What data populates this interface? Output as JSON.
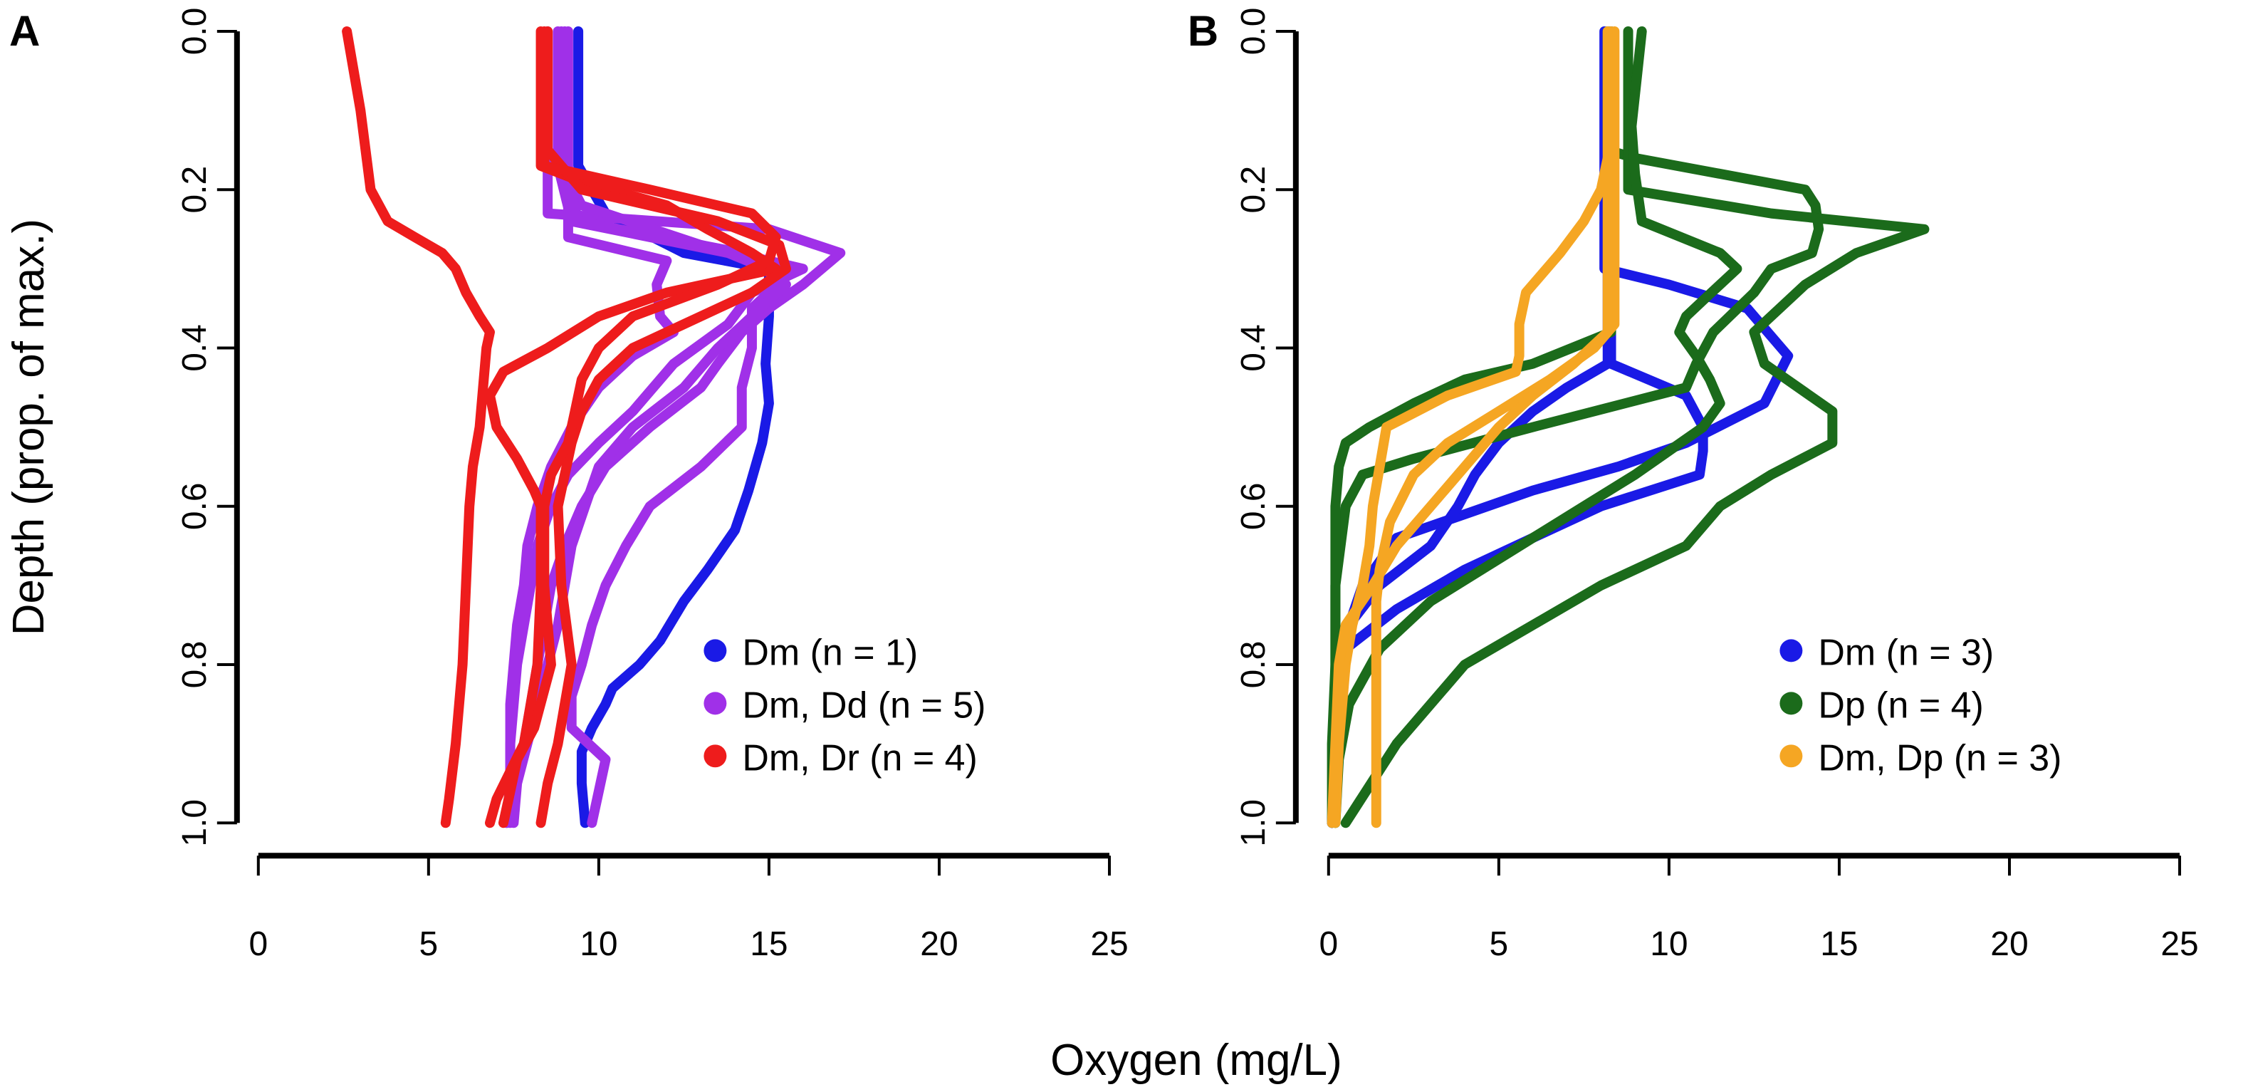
{
  "colors": {
    "Dm": "#1a1ae6",
    "Dm_Dd": "#a030e8",
    "Dm_Dr": "#ee1c1c",
    "Dp": "#1b6b1b",
    "Dm_Dp": "#f5a623"
  },
  "xlabel": "Oxygen (mg/L)",
  "ylabel": "Depth (prop. of max.)",
  "chart_data": [
    {
      "type": "line",
      "panel_label": "A",
      "xlabel": "Oxygen (mg/L)",
      "ylabel": "Depth (prop. of max.)",
      "xlim": [
        0,
        25
      ],
      "ylim": [
        0,
        1
      ],
      "x_ticks": [
        "0",
        "5",
        "10",
        "15",
        "20",
        "25"
      ],
      "y_ticks": [
        "0.0",
        "0.2",
        "0.4",
        "0.6",
        "0.8",
        "1.0"
      ],
      "legend_position": "bottom-right",
      "legend": [
        {
          "label": "Dm (n = 1)",
          "color_key": "Dm"
        },
        {
          "label": "Dm, Dd (n = 5)",
          "color_key": "Dm_Dd"
        },
        {
          "label": "Dm, Dr (n = 4)",
          "color_key": "Dm_Dr"
        }
      ],
      "series": [
        {
          "name": "Dm 1",
          "color_key": "Dm",
          "depth": [
            0,
            0.17,
            0.23,
            0.28,
            0.3,
            0.36,
            0.42,
            0.47,
            0.52,
            0.58,
            0.63,
            0.68,
            0.72,
            0.77,
            0.8,
            0.83,
            0.85,
            0.88,
            0.91,
            0.95,
            1.0
          ],
          "oxygen": [
            9.4,
            9.4,
            10.2,
            12.5,
            15,
            15,
            14.9,
            15,
            14.8,
            14.4,
            14,
            13.2,
            12.5,
            11.8,
            11.2,
            10.4,
            10.2,
            9.8,
            9.5,
            9.5,
            9.6
          ]
        },
        {
          "name": "Dm, Dd 1",
          "color_key": "Dm_Dd",
          "depth": [
            0,
            0.17,
            0.23,
            0.25,
            0.28,
            0.32,
            0.35,
            0.38,
            0.42,
            0.45,
            0.5,
            0.55,
            0.6,
            0.65,
            0.7,
            0.75,
            0.8,
            0.85,
            0.9,
            0.95,
            1.0
          ],
          "oxygen": [
            8.5,
            8.5,
            8.5,
            15,
            17.1,
            16,
            15,
            14.2,
            13.5,
            13,
            11.5,
            10.2,
            9.5,
            9,
            8.6,
            8.4,
            8.2,
            8,
            7.8,
            7.5,
            7.4
          ]
        },
        {
          "name": "Dm, Dd 2",
          "color_key": "Dm_Dd",
          "depth": [
            0,
            0.17,
            0.26,
            0.29,
            0.32,
            0.36,
            0.38,
            0.41,
            0.45,
            0.5,
            0.55,
            0.6,
            0.65,
            0.7,
            0.75,
            0.8,
            0.85,
            0.9,
            0.95,
            1.0
          ],
          "oxygen": [
            9.1,
            9.1,
            9.1,
            12,
            11.7,
            11.8,
            12.2,
            11,
            10,
            9.2,
            8.6,
            8.2,
            7.9,
            7.8,
            7.6,
            7.5,
            7.4,
            7.4,
            7.4,
            7.3
          ]
        },
        {
          "name": "Dm, Dd 3",
          "color_key": "Dm_Dd",
          "depth": [
            0,
            0.17,
            0.22,
            0.27,
            0.3,
            0.33,
            0.37,
            0.42,
            0.48,
            0.52,
            0.56,
            0.6,
            0.65,
            0.7,
            0.75,
            0.8,
            0.85,
            0.9,
            0.95,
            1.0
          ],
          "oxygen": [
            8.9,
            8.9,
            9.5,
            13,
            16,
            14.5,
            13.8,
            12.2,
            11,
            10,
            9.1,
            8.6,
            8.2,
            8,
            7.8,
            7.6,
            7.5,
            7.4,
            7.4,
            7.3
          ]
        },
        {
          "name": "Dm, Dd 4",
          "color_key": "Dm_Dd",
          "depth": [
            0,
            0.17,
            0.24,
            0.28,
            0.31,
            0.35,
            0.4,
            0.45,
            0.5,
            0.55,
            0.6,
            0.65,
            0.7,
            0.75,
            0.8,
            0.84,
            0.88,
            0.92,
            0.96,
            1.0
          ],
          "oxygen": [
            8.8,
            8.8,
            9.2,
            13.8,
            15.5,
            14.5,
            14.5,
            14.2,
            14.2,
            13,
            11.5,
            10.8,
            10.2,
            9.8,
            9.5,
            9.2,
            9.2,
            10.2,
            10.0,
            9.8
          ]
        },
        {
          "name": "Dm, Dd 5",
          "color_key": "Dm_Dd",
          "depth": [
            0,
            0.17,
            0.24,
            0.28,
            0.32,
            0.36,
            0.4,
            0.45,
            0.5,
            0.55,
            0.6,
            0.65,
            0.7,
            0.75,
            0.8,
            0.85,
            0.9,
            0.95,
            1.0
          ],
          "oxygen": [
            9.0,
            9.0,
            9.4,
            14.2,
            15.5,
            14.5,
            13.5,
            12.5,
            11,
            10,
            9.6,
            9.2,
            9,
            8.8,
            8.5,
            8.2,
            7.9,
            7.6,
            7.5
          ]
        },
        {
          "name": "Dm, Dr 1",
          "color_key": "Dm_Dr",
          "depth": [
            0,
            0.1,
            0.2,
            0.24,
            0.26,
            0.28,
            0.3,
            0.33,
            0.36,
            0.38,
            0.4,
            0.45,
            0.5,
            0.55,
            0.6,
            0.7,
            0.8,
            0.9,
            0.97,
            1.0
          ],
          "oxygen": [
            2.6,
            3.0,
            3.3,
            3.8,
            4.6,
            5.4,
            5.8,
            6.1,
            6.5,
            6.8,
            6.7,
            6.6,
            6.5,
            6.3,
            6.2,
            6.1,
            6.0,
            5.8,
            5.6,
            5.5
          ]
        },
        {
          "name": "Dm, Dr 2",
          "color_key": "Dm_Dr",
          "depth": [
            0,
            0.17,
            0.19,
            0.22,
            0.25,
            0.28,
            0.3,
            0.33,
            0.36,
            0.4,
            0.43,
            0.46,
            0.5,
            0.54,
            0.58,
            0.6,
            0.7,
            0.8,
            0.9,
            0.97,
            1.0
          ],
          "oxygen": [
            8.3,
            8.3,
            9.5,
            12,
            13.2,
            14.5,
            15.2,
            12,
            10,
            8.5,
            7.2,
            6.8,
            7,
            7.6,
            8.1,
            8.3,
            8.3,
            8.2,
            7.8,
            7.0,
            6.8
          ]
        },
        {
          "name": "Dm, Dr 3",
          "color_key": "Dm_Dr",
          "depth": [
            0,
            0.15,
            0.2,
            0.24,
            0.27,
            0.3,
            0.33,
            0.37,
            0.4,
            0.44,
            0.48,
            0.52,
            0.56,
            0.6,
            0.7,
            0.8,
            0.9,
            0.95,
            1.0
          ],
          "oxygen": [
            8.5,
            8.5,
            9.5,
            13.5,
            15.3,
            15.5,
            14.5,
            12.5,
            11,
            10,
            9.5,
            9.2,
            9,
            8.8,
            8.9,
            9.2,
            8.8,
            8.5,
            8.3
          ]
        },
        {
          "name": "Dm, Dr 4",
          "color_key": "Dm_Dr",
          "depth": [
            0,
            0.17,
            0.2,
            0.23,
            0.26,
            0.29,
            0.32,
            0.36,
            0.4,
            0.44,
            0.48,
            0.52,
            0.56,
            0.6,
            0.7,
            0.8,
            0.88,
            0.92,
            0.96,
            1.0
          ],
          "oxygen": [
            8.4,
            8.4,
            11.5,
            14.5,
            15.2,
            15,
            13.5,
            11,
            10,
            9.5,
            9.3,
            9.1,
            8.6,
            8.4,
            8.4,
            8.6,
            8.1,
            7.6,
            7.4,
            7.2
          ]
        }
      ]
    },
    {
      "type": "line",
      "panel_label": "B",
      "xlabel": "Oxygen (mg/L)",
      "ylabel": "Depth (prop. of max.)",
      "xlim": [
        0,
        25
      ],
      "ylim": [
        0,
        1
      ],
      "x_ticks": [
        "0",
        "5",
        "10",
        "15",
        "20",
        "25"
      ],
      "y_ticks": [
        "0.0",
        "0.2",
        "0.4",
        "0.6",
        "0.8",
        "1.0"
      ],
      "legend_position": "bottom-right",
      "legend": [
        {
          "label": "Dm (n = 3)",
          "color_key": "Dm"
        },
        {
          "label": "Dp (n = 4)",
          "color_key": "Dp"
        },
        {
          "label": "Dm, Dp (n = 3)",
          "color_key": "Dm_Dp"
        }
      ],
      "series": [
        {
          "name": "Dm 1",
          "color_key": "Dm",
          "depth": [
            0,
            0.3,
            0.32,
            0.35,
            0.41,
            0.47,
            0.52,
            0.55,
            0.58,
            0.61,
            0.64,
            0.7,
            0.75,
            0.8,
            0.9,
            1.0
          ],
          "oxygen": [
            8.1,
            8.1,
            10,
            12.3,
            13.5,
            12.8,
            10.5,
            8.5,
            6,
            4,
            2,
            1,
            0.6,
            0.4,
            0.2,
            0.1
          ]
        },
        {
          "name": "Dm 2",
          "color_key": "Dm",
          "depth": [
            0,
            0.42,
            0.45,
            0.48,
            0.52,
            0.56,
            0.6,
            0.65,
            0.7,
            0.75,
            0.8,
            0.9,
            1.0
          ],
          "oxygen": [
            8.2,
            8.2,
            7,
            6,
            5,
            4.3,
            3.8,
            3,
            1.5,
            0.6,
            0.3,
            0.2,
            0.1
          ]
        },
        {
          "name": "Dm 3",
          "color_key": "Dm",
          "depth": [
            0,
            0.42,
            0.46,
            0.5,
            0.53,
            0.56,
            0.6,
            0.64,
            0.68,
            0.73,
            0.78,
            0.85,
            1.0
          ],
          "oxygen": [
            8.3,
            8.3,
            10.5,
            11,
            11,
            10.9,
            8,
            6,
            4,
            2,
            0.5,
            0.2,
            0.1
          ]
        },
        {
          "name": "Dp 1",
          "color_key": "Dp",
          "depth": [
            0,
            0.15,
            0.16,
            0.2,
            0.22,
            0.25,
            0.28,
            0.3,
            0.33,
            0.38,
            0.42,
            0.45,
            0.5,
            0.54,
            0.56,
            0.6,
            0.7,
            0.8,
            0.9,
            1.0
          ],
          "oxygen": [
            8.2,
            8.2,
            9,
            14,
            14.3,
            14.4,
            14.2,
            13,
            12.5,
            11.3,
            10.8,
            10.5,
            6,
            2.5,
            1,
            0.5,
            0.2,
            0.2,
            0.1,
            0.1
          ]
        },
        {
          "name": "Dp 2",
          "color_key": "Dp",
          "depth": [
            0,
            0.2,
            0.23,
            0.25,
            0.28,
            0.32,
            0.38,
            0.42,
            0.48,
            0.52,
            0.56,
            0.6,
            0.65,
            0.7,
            0.8,
            0.9,
            1.0
          ],
          "oxygen": [
            8.8,
            8.8,
            13,
            17.5,
            15.5,
            14,
            12.5,
            12.8,
            14.8,
            14.8,
            13,
            11.5,
            10.5,
            8,
            4,
            2,
            0.5
          ]
        },
        {
          "name": "Dp 3",
          "color_key": "Dp",
          "depth": [
            0,
            0.08,
            0.12,
            0.18,
            0.24,
            0.28,
            0.3,
            0.34,
            0.36,
            0.38,
            0.41,
            0.44,
            0.47,
            0.5,
            0.53,
            0.56,
            0.6,
            0.64,
            0.68,
            0.72,
            0.78,
            0.85,
            0.92,
            1.0
          ],
          "oxygen": [
            9.2,
            9.0,
            8.9,
            9.0,
            9.2,
            11.5,
            12,
            11,
            10.5,
            10.3,
            10.8,
            11.2,
            11.5,
            11,
            10,
            9,
            7.5,
            6,
            4.5,
            3,
            1.5,
            0.6,
            0.3,
            0.2
          ]
        },
        {
          "name": "Dp 4",
          "color_key": "Dp",
          "depth": [
            0,
            0.38,
            0.42,
            0.44,
            0.47,
            0.5,
            0.52,
            0.55,
            0.6,
            0.65,
            0.7,
            0.75,
            0.8,
            0.85,
            0.9,
            0.95,
            1.0
          ],
          "oxygen": [
            8.3,
            8.3,
            6,
            4,
            2.5,
            1.2,
            0.5,
            0.3,
            0.2,
            0.2,
            0.2,
            0.2,
            0.2,
            0.2,
            0.2,
            0.2,
            0.2
          ]
        },
        {
          "name": "Dm, Dp 1",
          "color_key": "Dm_Dp",
          "depth": [
            0,
            0.14,
            0.2,
            0.24,
            0.28,
            0.33,
            0.37,
            0.41,
            0.43,
            0.46,
            0.5,
            0.55,
            0.6,
            0.65,
            0.7,
            0.75,
            0.8,
            0.85,
            0.9,
            1.0
          ],
          "oxygen": [
            8.3,
            8.3,
            8.0,
            7.5,
            6.8,
            5.8,
            5.6,
            5.6,
            5.5,
            3.5,
            1.7,
            1.5,
            1.3,
            1.2,
            1.0,
            0.7,
            0.5,
            0.4,
            0.3,
            0.2
          ]
        },
        {
          "name": "Dm, Dp 2",
          "color_key": "Dm_Dp",
          "depth": [
            0,
            0.37,
            0.4,
            0.44,
            0.48,
            0.52,
            0.56,
            0.62,
            0.68,
            0.72,
            0.78,
            0.85,
            0.9,
            0.95,
            1.0
          ],
          "oxygen": [
            8.4,
            8.4,
            7.8,
            6.5,
            5,
            3.5,
            2.5,
            1.8,
            1.5,
            1.4,
            1.4,
            1.4,
            1.4,
            1.4,
            1.4
          ]
        },
        {
          "name": "Dm, Dp 3",
          "color_key": "Dm_Dp",
          "depth": [
            0,
            0.38,
            0.42,
            0.46,
            0.5,
            0.55,
            0.6,
            0.65,
            0.7,
            0.75,
            0.8,
            0.9,
            1.0
          ],
          "oxygen": [
            8.2,
            8.2,
            7.2,
            6,
            5,
            4,
            3,
            2,
            1.3,
            0.5,
            0.3,
            0.2,
            0.1
          ]
        }
      ]
    }
  ]
}
